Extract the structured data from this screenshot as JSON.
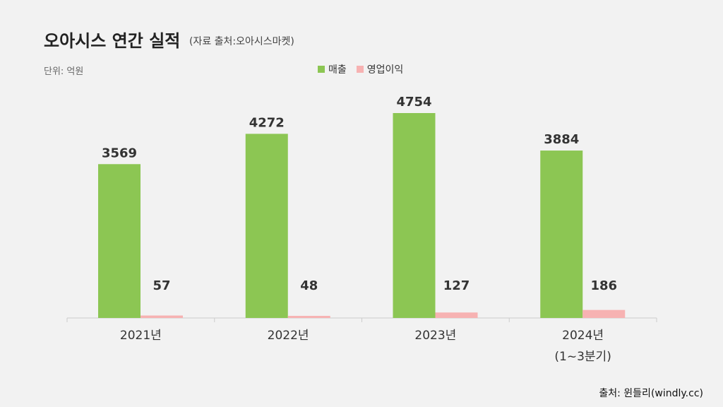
{
  "title": "오아시스 연간 실적",
  "subtitle": "(자료 출처:오아시스마켓)",
  "unit_label": "단위: 억원",
  "source": "출처: 윈들리(windly.cc)",
  "colors": {
    "sales": "#8cc653",
    "operating_profit": "#f7b2b2"
  },
  "chart_data": {
    "type": "bar",
    "categories": [
      [
        "2021년"
      ],
      [
        "2022년"
      ],
      [
        "2023년"
      ],
      [
        "2024년",
        "(1~3분기)"
      ]
    ],
    "series": [
      {
        "name": "매출",
        "values": [
          3569,
          4272,
          4754,
          3884
        ]
      },
      {
        "name": "영업이익",
        "values": [
          57,
          48,
          127,
          186
        ]
      }
    ],
    "ylim": [
      0,
      5000
    ],
    "grid": false,
    "legend_position": "top-center"
  }
}
